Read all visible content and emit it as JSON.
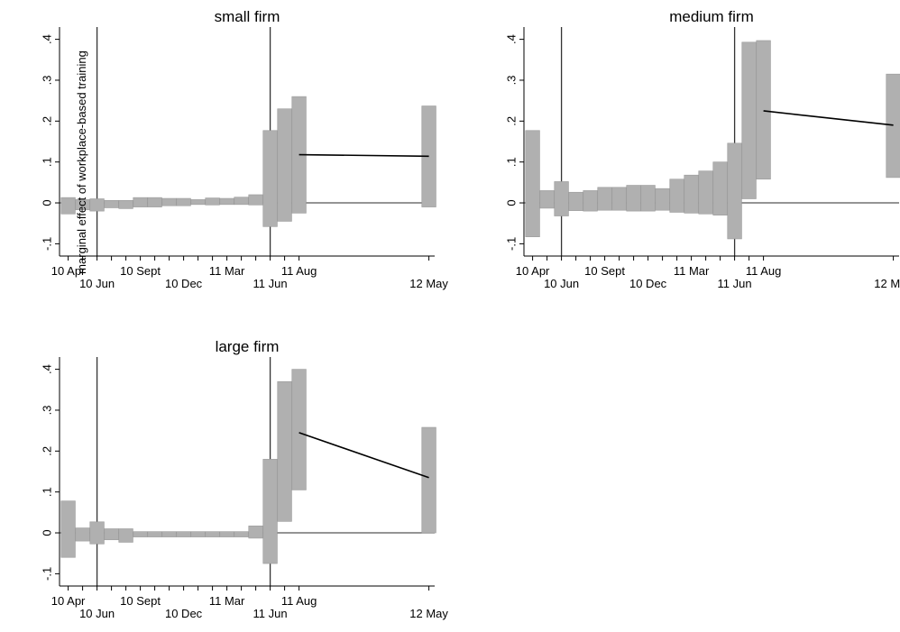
{
  "figure": {
    "ylabel": "marginal effect of workplace-based training",
    "ylim": [
      -0.13,
      0.43
    ],
    "xlim": [
      -0.6,
      25.4
    ],
    "yticks": [
      -0.1,
      0,
      0.1,
      0.2,
      0.3,
      0.4
    ],
    "ytick_labels": [
      "-.1",
      "0",
      ".1",
      ".2",
      ".3",
      ".4"
    ],
    "xticks": [
      0,
      1,
      2,
      3,
      4,
      5,
      6,
      7,
      8,
      9,
      10,
      11,
      12,
      13,
      14,
      15,
      16,
      25
    ],
    "xtick_labels_upper": [
      {
        "x": 0,
        "label": "10 Apr"
      },
      {
        "x": 5,
        "label": "10 Sept"
      },
      {
        "x": 11,
        "label": "11 Mar"
      },
      {
        "x": 16,
        "label": "11 Aug"
      }
    ],
    "xtick_labels_lower": [
      {
        "x": 2,
        "label": "10 Jun"
      },
      {
        "x": 8,
        "label": "10 Dec"
      },
      {
        "x": 14,
        "label": "11 Jun"
      },
      {
        "x": 25,
        "label": "12 May"
      }
    ],
    "vlines": [
      2,
      14
    ],
    "colors": {
      "bar": "#b0b0b0",
      "bar_edge": "#9a9a9a",
      "line": "#000000",
      "axis": "#000000"
    }
  },
  "chart_data": [
    {
      "type": "bar",
      "title": "small firm",
      "x": [
        0,
        1,
        2,
        3,
        4,
        5,
        6,
        7,
        8,
        9,
        10,
        11,
        12,
        13,
        14,
        15,
        16
      ],
      "lower": [
        -0.027,
        -0.017,
        -0.02,
        -0.012,
        -0.014,
        -0.01,
        -0.01,
        -0.007,
        -0.007,
        -0.004,
        -0.005,
        -0.004,
        -0.004,
        -0.005,
        -0.058,
        -0.045,
        -0.025
      ],
      "upper": [
        0.013,
        0.008,
        0.01,
        0.006,
        0.006,
        0.013,
        0.013,
        0.011,
        0.011,
        0.008,
        0.012,
        0.011,
        0.014,
        0.02,
        0.177,
        0.23,
        0.26
      ],
      "line_points": [
        {
          "x": 16,
          "y": 0.118
        },
        {
          "x": 25,
          "y": 0.114
        }
      ],
      "final_bar": {
        "x": 25,
        "lower": -0.01,
        "upper": 0.237
      }
    },
    {
      "type": "bar",
      "title": "medium firm",
      "x": [
        0,
        1,
        2,
        3,
        4,
        5,
        6,
        7,
        8,
        9,
        10,
        11,
        12,
        13,
        14,
        15,
        16
      ],
      "lower": [
        -0.083,
        -0.013,
        -0.032,
        -0.019,
        -0.02,
        -0.018,
        -0.018,
        -0.02,
        -0.02,
        -0.018,
        -0.023,
        -0.025,
        -0.027,
        -0.03,
        -0.088,
        0.01,
        0.058
      ],
      "upper": [
        0.177,
        0.03,
        0.052,
        0.026,
        0.03,
        0.038,
        0.038,
        0.043,
        0.043,
        0.035,
        0.058,
        0.068,
        0.078,
        0.1,
        0.146,
        0.393,
        0.397
      ],
      "line_points": [
        {
          "x": 16,
          "y": 0.225
        },
        {
          "x": 25,
          "y": 0.19
        }
      ],
      "final_bar": {
        "x": 25,
        "lower": 0.062,
        "upper": 0.315
      }
    },
    {
      "type": "bar",
      "title": "large firm",
      "x": [
        0,
        1,
        2,
        3,
        4,
        5,
        6,
        7,
        8,
        9,
        10,
        11,
        12,
        13,
        14,
        15,
        16
      ],
      "lower": [
        -0.06,
        -0.02,
        -0.027,
        -0.017,
        -0.023,
        -0.01,
        -0.01,
        -0.01,
        -0.01,
        -0.01,
        -0.01,
        -0.01,
        -0.01,
        -0.013,
        -0.075,
        0.028,
        0.105
      ],
      "upper": [
        0.078,
        0.012,
        0.027,
        0.01,
        0.01,
        0.003,
        0.003,
        0.003,
        0.003,
        0.003,
        0.003,
        0.003,
        0.003,
        0.017,
        0.18,
        0.37,
        0.4
      ],
      "line_points": [
        {
          "x": 16,
          "y": 0.245
        },
        {
          "x": 25,
          "y": 0.135
        }
      ],
      "final_bar": {
        "x": 25,
        "lower": 0,
        "upper": 0.258
      }
    }
  ]
}
